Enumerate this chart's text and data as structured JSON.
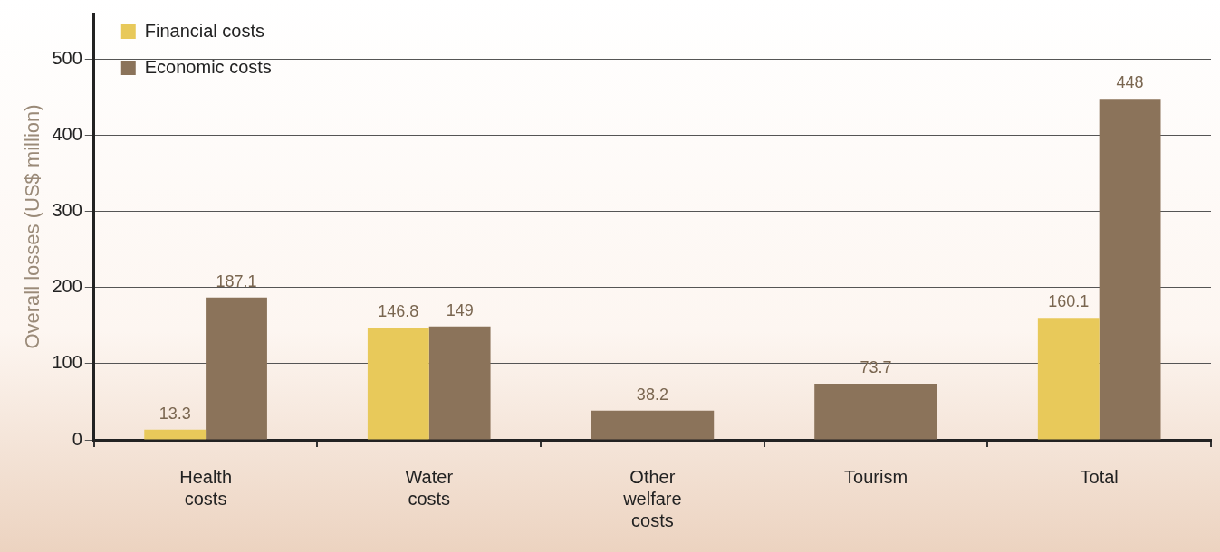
{
  "chart_data": {
    "type": "bar",
    "ylabel": "Overall losses (US$ million)",
    "categories": [
      "Health costs",
      "Water costs",
      "Other welfare costs",
      "Tourism",
      "Total"
    ],
    "series": [
      {
        "name": "Financial costs",
        "color": "#e8c95a",
        "values": [
          13.3,
          146.8,
          null,
          null,
          160.1
        ]
      },
      {
        "name": "Economic costs",
        "color": "#8b735a",
        "values": [
          187.1,
          149,
          38.2,
          73.7,
          448
        ]
      }
    ],
    "ylim": [
      0,
      560
    ],
    "yticks": [
      0,
      100,
      200,
      300,
      400,
      500
    ],
    "grid": "y",
    "legend": "top left",
    "data_labels": true
  }
}
